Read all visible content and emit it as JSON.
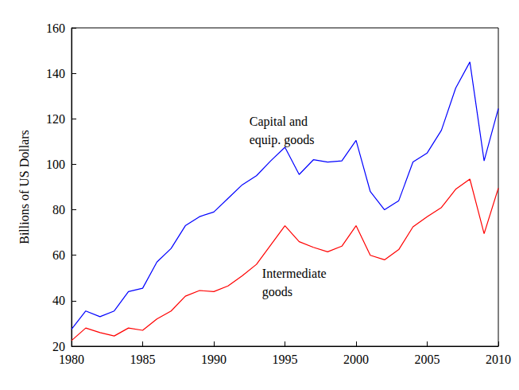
{
  "chart_data": {
    "type": "line",
    "y_label": "Billions of US Dollars",
    "x": [
      1980,
      1981,
      1982,
      1983,
      1984,
      1985,
      1986,
      1987,
      1988,
      1989,
      1990,
      1991,
      1992,
      1993,
      1994,
      1995,
      1996,
      1997,
      1998,
      1999,
      2000,
      2001,
      2002,
      2003,
      2004,
      2005,
      2006,
      2007,
      2008,
      2009,
      2010
    ],
    "series": [
      {
        "name": "Capital and\nequip. goods",
        "color": "#0000ff",
        "values": [
          27.5,
          35.5,
          33,
          35.5,
          44,
          45.5,
          57,
          63,
          73,
          77,
          79,
          85,
          91,
          95,
          101.5,
          107.5,
          95.5,
          102,
          101,
          101.5,
          110.5,
          88,
          80,
          84,
          101,
          105,
          115,
          133.5,
          145,
          101.5,
          124.5
        ]
      },
      {
        "name": "Intermediate\ngoods",
        "color": "#ff0000",
        "values": [
          22.5,
          28,
          26,
          24.5,
          28,
          27,
          32,
          35.5,
          42,
          44.5,
          44,
          46.5,
          51,
          56,
          64.5,
          73,
          66,
          63.5,
          61.5,
          64,
          73,
          60,
          58,
          62.5,
          72.5,
          77,
          81,
          89,
          93.5,
          69.5,
          89.5
        ]
      }
    ],
    "annotations": [
      {
        "text": "Capital and\nequip. goods",
        "x": 1992.5,
        "y": 123
      },
      {
        "text": "Intermediate\ngoods",
        "x": 1993.4,
        "y": 56
      }
    ],
    "xlim": [
      1980,
      2010
    ],
    "xticks": [
      1980,
      1985,
      1990,
      1995,
      2000,
      2005,
      2010
    ],
    "ylim": [
      20,
      160
    ],
    "yticks": [
      20,
      40,
      60,
      80,
      100,
      120,
      140,
      160
    ],
    "grid": false
  }
}
